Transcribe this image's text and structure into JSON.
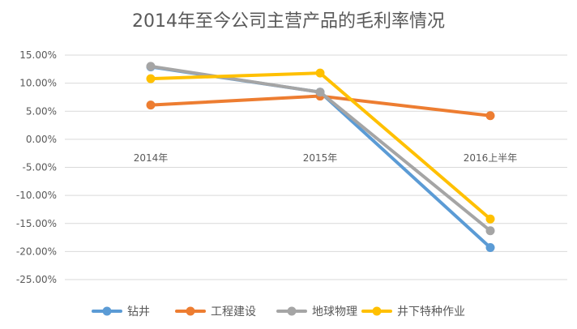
{
  "chart_data": {
    "type": "line",
    "title": "2014年至今公司主营产品的毛利率情况",
    "categories": [
      "2014年",
      "2015年",
      "2016上半年"
    ],
    "ylim": [
      -0.25,
      0.15
    ],
    "yticks": [
      0.15,
      0.1,
      0.05,
      0.0,
      -0.05,
      -0.1,
      -0.15,
      -0.2,
      -0.25
    ],
    "ytick_labels": [
      "15.00%",
      "10.00%",
      "5.00%",
      "0.00%",
      "-5.00%",
      "-10.00%",
      "-15.00%",
      "-20.00%",
      "-25.00%"
    ],
    "grid": true,
    "legend_position": "bottom",
    "series": [
      {
        "name": "钻井",
        "color": "#5B9BD5",
        "values": [
          0.129,
          0.084,
          -0.193
        ]
      },
      {
        "name": "工程建设",
        "color": "#ED7D31",
        "values": [
          0.061,
          0.077,
          0.042
        ]
      },
      {
        "name": "地球物理",
        "color": "#A5A5A5",
        "values": [
          0.13,
          0.084,
          -0.163
        ]
      },
      {
        "name": "井下特种作业",
        "color": "#FFC000",
        "values": [
          0.108,
          0.118,
          -0.142
        ]
      }
    ]
  }
}
